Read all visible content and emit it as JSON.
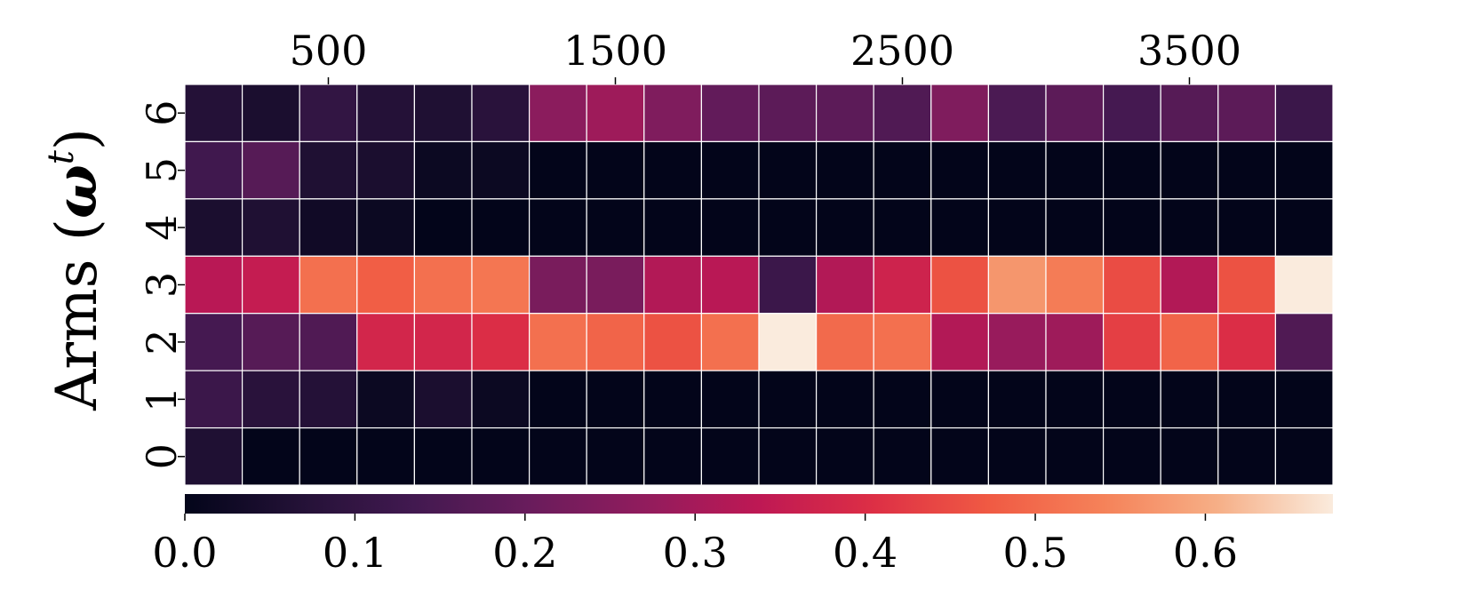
{
  "chart_data": {
    "type": "heatmap",
    "title": "",
    "ylabel_prefix": "Arms (",
    "ylabel_symbol": "ω",
    "ylabel_sup": "t",
    "ylabel_suffix": ")",
    "x_tick_labels": [
      "500",
      "1500",
      "2500",
      "3500"
    ],
    "x_tick_values": [
      500,
      1500,
      2500,
      3500
    ],
    "x_range": [
      0,
      4000
    ],
    "n_columns": 20,
    "y_categories": [
      "0",
      "1",
      "2",
      "3",
      "4",
      "5",
      "6"
    ],
    "colorbar": {
      "orientation": "horizontal",
      "range": [
        0,
        0.675
      ],
      "tick_labels": [
        "0.0",
        "0.1",
        "0.2",
        "0.3",
        "0.4",
        "0.5",
        "0.6"
      ],
      "tick_values": [
        0.0,
        0.1,
        0.2,
        0.3,
        0.4,
        0.5,
        0.6
      ],
      "colormap": "rocket"
    },
    "values": {
      "6": [
        0.07,
        0.05,
        0.1,
        0.07,
        0.06,
        0.08,
        0.26,
        0.29,
        0.24,
        0.19,
        0.18,
        0.18,
        0.16,
        0.24,
        0.15,
        0.18,
        0.14,
        0.17,
        0.18,
        0.12
      ],
      "5": [
        0.13,
        0.17,
        0.06,
        0.05,
        0.02,
        0.02,
        0.0,
        0.0,
        0.0,
        0.0,
        0.0,
        0.0,
        0.0,
        0.0,
        0.0,
        0.0,
        0.0,
        0.0,
        0.0,
        0.0
      ],
      "4": [
        0.05,
        0.06,
        0.03,
        0.02,
        0.0,
        0.0,
        0.0,
        0.0,
        0.0,
        0.0,
        0.0,
        0.0,
        0.0,
        0.0,
        0.0,
        0.0,
        0.0,
        0.0,
        0.0,
        0.0
      ],
      "3": [
        0.33,
        0.35,
        0.51,
        0.48,
        0.51,
        0.52,
        0.23,
        0.23,
        0.32,
        0.33,
        0.12,
        0.32,
        0.37,
        0.46,
        0.57,
        0.53,
        0.45,
        0.32,
        0.46,
        0.675
      ],
      "2": [
        0.14,
        0.17,
        0.16,
        0.38,
        0.38,
        0.4,
        0.51,
        0.49,
        0.46,
        0.51,
        0.675,
        0.5,
        0.51,
        0.32,
        0.28,
        0.29,
        0.43,
        0.49,
        0.4,
        0.16
      ],
      "1": [
        0.12,
        0.08,
        0.07,
        0.02,
        0.05,
        0.02,
        0.0,
        0.0,
        0.0,
        0.0,
        0.0,
        0.0,
        0.0,
        0.0,
        0.0,
        0.0,
        0.0,
        0.0,
        0.0,
        0.0
      ],
      "0": [
        0.06,
        0.0,
        0.0,
        0.0,
        0.0,
        0.0,
        0.0,
        0.0,
        0.0,
        0.0,
        0.0,
        0.0,
        0.0,
        0.0,
        0.0,
        0.0,
        0.0,
        0.0,
        0.0,
        0.0
      ]
    }
  }
}
